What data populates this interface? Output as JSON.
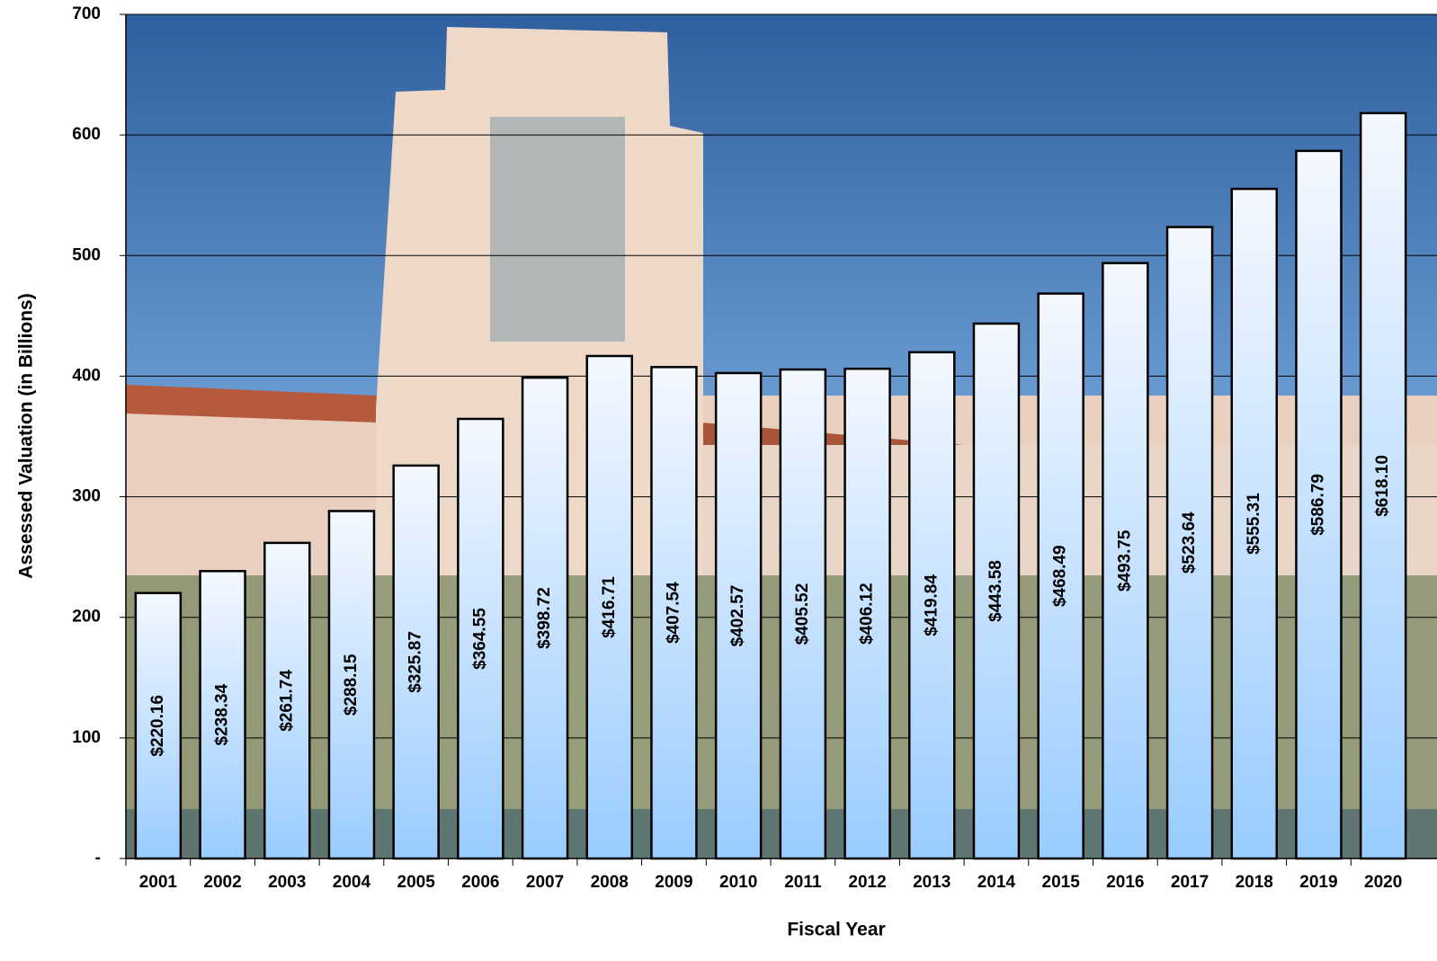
{
  "chart_data": {
    "type": "bar",
    "y_axis_label": "Assessed Valuation (in Billions)",
    "x_axis_label": "Fiscal Year",
    "categories": [
      "2001",
      "2002",
      "2003",
      "2004",
      "2005",
      "2006",
      "2007",
      "2008",
      "2009",
      "2010",
      "2011",
      "2012",
      "2013",
      "2014",
      "2015",
      "2016",
      "2017",
      "2018",
      "2019",
      "2020"
    ],
    "values": [
      220.16,
      238.34,
      261.74,
      288.15,
      325.87,
      364.55,
      398.72,
      416.71,
      407.54,
      402.57,
      405.52,
      406.12,
      419.84,
      443.58,
      468.49,
      493.75,
      523.64,
      555.31,
      586.79,
      618.1
    ],
    "value_labels": [
      "$220.16",
      "$238.34",
      "$261.74",
      "$288.15",
      "$325.87",
      "$364.55",
      "$398.72",
      "$416.71",
      "$407.54",
      "$402.57",
      "$405.52",
      "$406.12",
      "$419.84",
      "$443.58",
      "$468.49",
      "$493.75",
      "$523.64",
      "$555.31",
      "$586.79",
      "$618.10"
    ],
    "ylim": [
      0,
      700
    ],
    "yticks": [
      {
        "value": 0,
        "label": "-"
      },
      100,
      200,
      300,
      400,
      500,
      600,
      700
    ],
    "grid": true,
    "color": "#99ccff"
  }
}
